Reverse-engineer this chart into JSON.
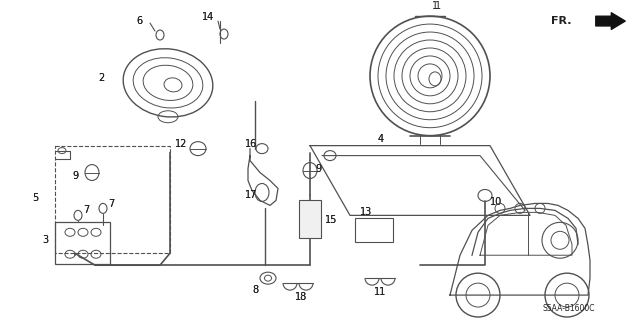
{
  "bg_color": "#ffffff",
  "line_color": "#505050",
  "label_color": "#222222",
  "part_number": "S5AA-B1600C",
  "fig_width": 6.4,
  "fig_height": 3.2,
  "dpi": 100
}
